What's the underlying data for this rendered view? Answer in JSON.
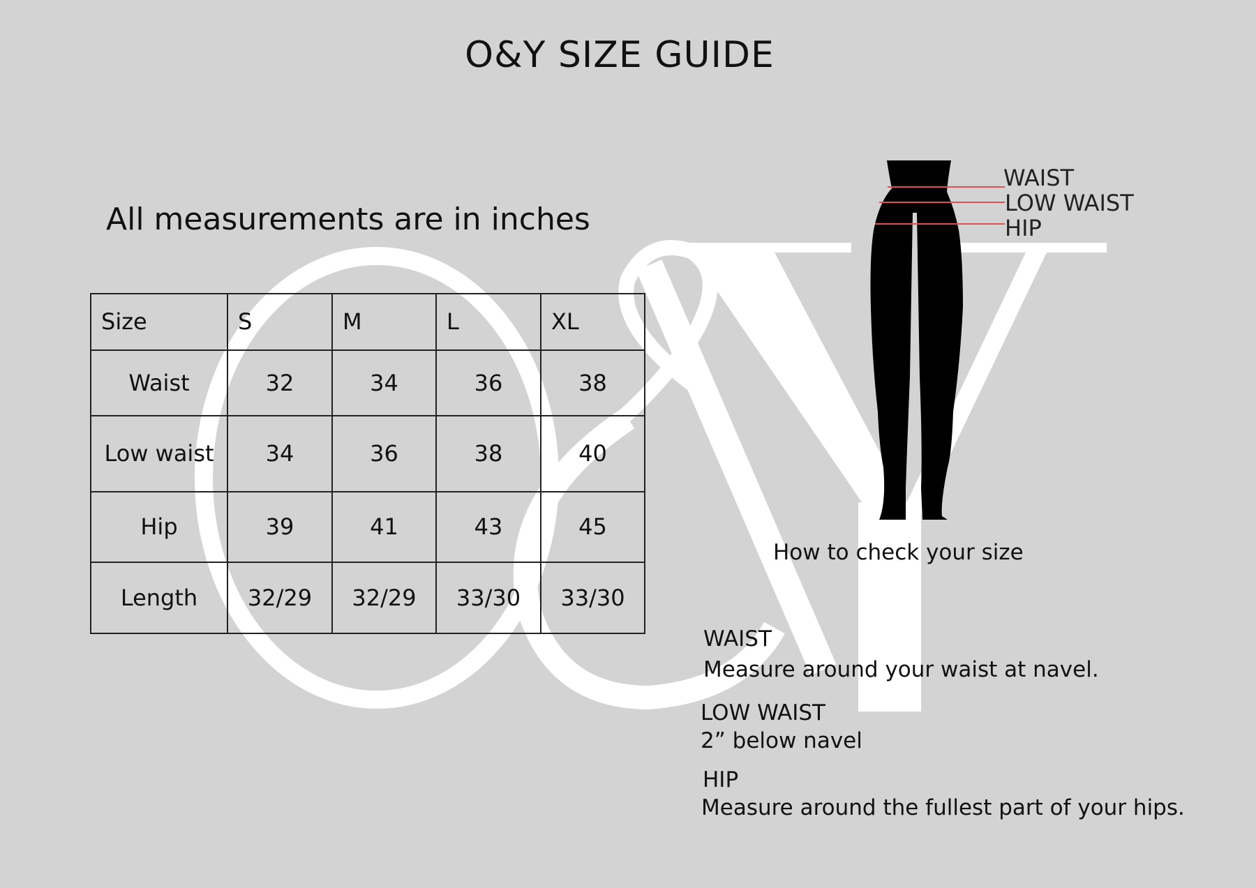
{
  "title": "O&Y SIZE GUIDE",
  "subtitle": "All measurements are in inches",
  "watermark": {
    "letters": "O&Y",
    "color": "#ffffff"
  },
  "table": {
    "headers": [
      "Size",
      "S",
      "M",
      "L",
      "XL"
    ],
    "rows": [
      {
        "label": "Waist",
        "values": [
          "32",
          "34",
          "36",
          "38"
        ]
      },
      {
        "label": "Low waist",
        "values": [
          "34",
          "36",
          "38",
          "40"
        ]
      },
      {
        "label": "Hip",
        "values": [
          "39",
          "41",
          "43",
          "45"
        ]
      },
      {
        "label": "Length",
        "values": [
          "32/29",
          "32/29",
          "33/30",
          "33/30"
        ]
      }
    ]
  },
  "figure": {
    "labels": [
      "WAIST",
      "LOW WAIST",
      "HIP"
    ],
    "line_color": "#e05050",
    "caption": "How to check your size"
  },
  "instructions": [
    {
      "heading": "WAIST",
      "text": "Measure around your waist at navel."
    },
    {
      "heading": "LOW WAIST",
      "text": "2” below navel"
    },
    {
      "heading": "HIP",
      "text": "Measure around the fullest part of your hips."
    }
  ],
  "colors": {
    "background": "#d3d3d3",
    "text": "#111111"
  }
}
